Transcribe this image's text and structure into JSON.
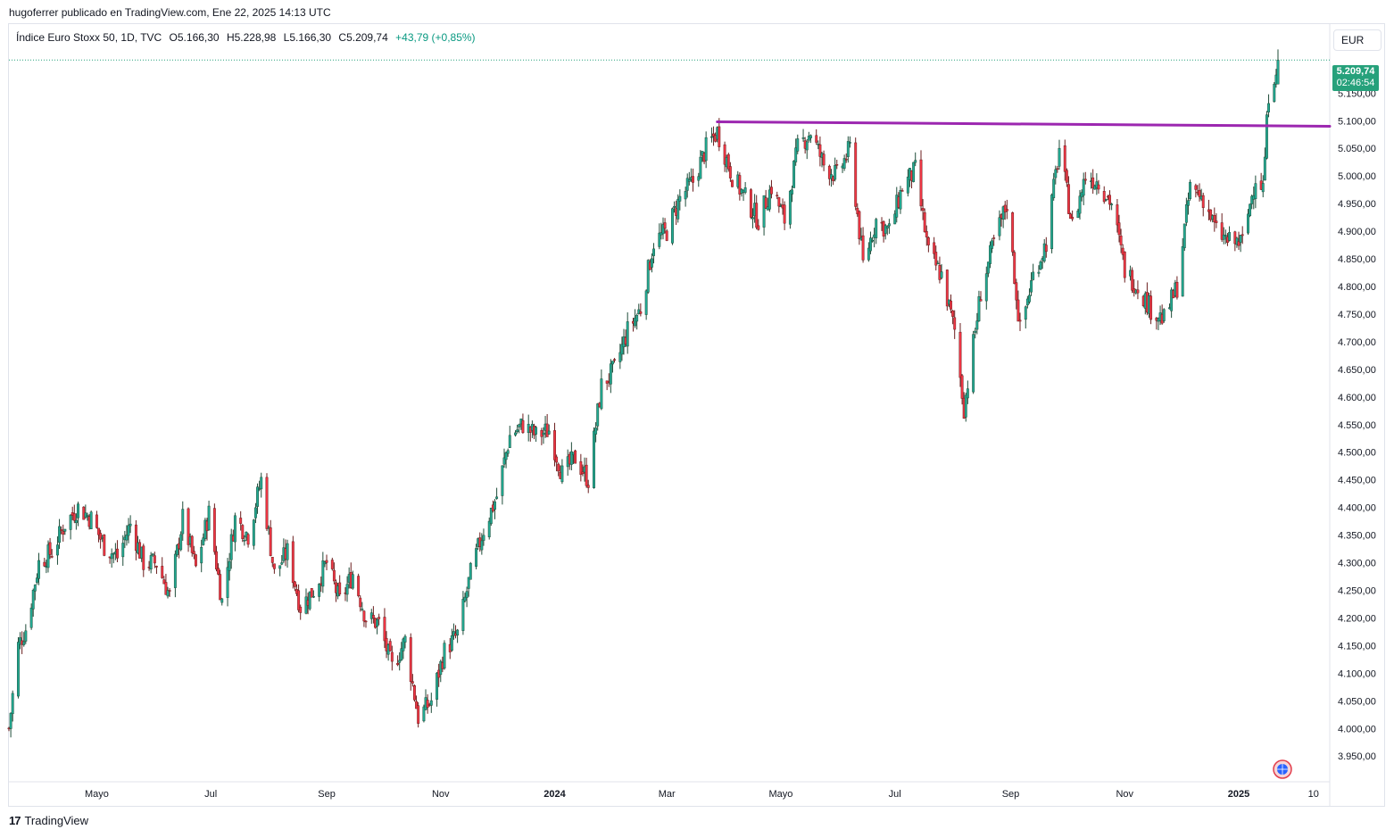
{
  "publication": "hugoferrer publicado en TradingView.com, Ene 22, 2025 14:13 UTC",
  "legend": {
    "symbol": "Índice Euro Stoxx 50, 1D, TVC",
    "open": "O5.166,30",
    "high": "H5.228,98",
    "low": "L5.166,30",
    "close": "C5.209,74",
    "change": "+43,79 (+0,85%)"
  },
  "currency": "EUR",
  "last_price": {
    "value": "5.209,74",
    "countdown": "02:46:54"
  },
  "footer_brand": "TradingView",
  "colors": {
    "up": "#22ab94",
    "up_dark": "#1f4d3a",
    "down": "#f23645",
    "down_dark": "#6b1e1e",
    "trendline": "#9c27b0",
    "last_price": "#26a17b"
  },
  "chart_data": {
    "type": "candlestick",
    "title": "Índice Euro Stoxx 50, 1D, TVC",
    "ylim": [
      3910,
      5270
    ],
    "y_ticks": [
      "5.150,00",
      "5.100,00",
      "5.050,00",
      "5.000,00",
      "4.950,00",
      "4.900,00",
      "4.850,00",
      "4.800,00",
      "4.750,00",
      "4.700,00",
      "4.650,00",
      "4.600,00",
      "4.550,00",
      "4.500,00",
      "4.450,00",
      "4.400,00",
      "4.350,00",
      "4.300,00",
      "4.250,00",
      "4.200,00",
      "4.150,00",
      "4.100,00",
      "4.050,00",
      "4.000,00",
      "3.950,00"
    ],
    "y_tick_values": [
      5150,
      5100,
      5050,
      5000,
      4950,
      4900,
      4850,
      4800,
      4750,
      4700,
      4650,
      4600,
      4550,
      4500,
      4450,
      4400,
      4350,
      4300,
      4250,
      4200,
      4150,
      4100,
      4050,
      4000,
      3950
    ],
    "x_ticks": [
      {
        "label": "Mayo",
        "date": "2023-05-01",
        "bold": false
      },
      {
        "label": "Jul",
        "date": "2023-07-01",
        "bold": false
      },
      {
        "label": "Sep",
        "date": "2023-09-01",
        "bold": false
      },
      {
        "label": "Nov",
        "date": "2023-11-01",
        "bold": false
      },
      {
        "label": "2024",
        "date": "2024-01-01",
        "bold": true
      },
      {
        "label": "Mar",
        "date": "2024-03-01",
        "bold": false
      },
      {
        "label": "Mayo",
        "date": "2024-05-01",
        "bold": false
      },
      {
        "label": "Jul",
        "date": "2024-07-01",
        "bold": false
      },
      {
        "label": "Sep",
        "date": "2024-09-01",
        "bold": false
      },
      {
        "label": "Nov",
        "date": "2024-11-01",
        "bold": false
      },
      {
        "label": "2025",
        "date": "2025-01-01",
        "bold": true
      },
      {
        "label": "10",
        "date": "2025-02-10",
        "bold": false
      }
    ],
    "date_range": [
      "2023-03-15",
      "2025-01-22"
    ],
    "trendline": {
      "from": {
        "date": "2024-03-28",
        "value": 5098
      },
      "to": {
        "date": "2025-02-21",
        "value": 5090
      }
    },
    "last_close": 5209.74,
    "close_path": [
      [
        "2023-03-15",
        4000
      ],
      [
        "2023-03-20",
        4150
      ],
      [
        "2023-03-24",
        4180
      ],
      [
        "2023-03-31",
        4300
      ],
      [
        "2023-04-07",
        4320
      ],
      [
        "2023-04-14",
        4370
      ],
      [
        "2023-04-21",
        4400
      ],
      [
        "2023-04-28",
        4380
      ],
      [
        "2023-05-05",
        4330
      ],
      [
        "2023-05-12",
        4310
      ],
      [
        "2023-05-19",
        4370
      ],
      [
        "2023-05-26",
        4300
      ],
      [
        "2023-06-02",
        4300
      ],
      [
        "2023-06-09",
        4240
      ],
      [
        "2023-06-16",
        4380
      ],
      [
        "2023-06-23",
        4290
      ],
      [
        "2023-06-30",
        4390
      ],
      [
        "2023-07-07",
        4230
      ],
      [
        "2023-07-14",
        4380
      ],
      [
        "2023-07-21",
        4350
      ],
      [
        "2023-07-28",
        4450
      ],
      [
        "2023-08-04",
        4280
      ],
      [
        "2023-08-11",
        4320
      ],
      [
        "2023-08-18",
        4220
      ],
      [
        "2023-08-25",
        4250
      ],
      [
        "2023-09-01",
        4300
      ],
      [
        "2023-09-08",
        4230
      ],
      [
        "2023-09-15",
        4280
      ],
      [
        "2023-09-22",
        4200
      ],
      [
        "2023-09-29",
        4190
      ],
      [
        "2023-10-06",
        4110
      ],
      [
        "2023-10-13",
        4160
      ],
      [
        "2023-10-20",
        4020
      ],
      [
        "2023-10-27",
        4050
      ],
      [
        "2023-11-03",
        4140
      ],
      [
        "2023-11-10",
        4170
      ],
      [
        "2023-11-17",
        4280
      ],
      [
        "2023-11-24",
        4360
      ],
      [
        "2023-12-01",
        4420
      ],
      [
        "2023-12-08",
        4530
      ],
      [
        "2023-12-15",
        4550
      ],
      [
        "2023-12-22",
        4530
      ],
      [
        "2023-12-29",
        4540
      ],
      [
        "2024-01-05",
        4460
      ],
      [
        "2024-01-12",
        4490
      ],
      [
        "2024-01-19",
        4450
      ],
      [
        "2024-01-26",
        4620
      ],
      [
        "2024-02-02",
        4650
      ],
      [
        "2024-02-09",
        4720
      ],
      [
        "2024-02-16",
        4760
      ],
      [
        "2024-02-23",
        4880
      ],
      [
        "2024-03-01",
        4900
      ],
      [
        "2024-03-08",
        4960
      ],
      [
        "2024-03-15",
        4990
      ],
      [
        "2024-03-22",
        5050
      ],
      [
        "2024-03-28",
        5080
      ],
      [
        "2024-04-05",
        5000
      ],
      [
        "2024-04-12",
        4960
      ],
      [
        "2024-04-19",
        4920
      ],
      [
        "2024-04-26",
        4980
      ],
      [
        "2024-05-03",
        4920
      ],
      [
        "2024-05-10",
        5050
      ],
      [
        "2024-05-17",
        5080
      ],
      [
        "2024-05-24",
        5020
      ],
      [
        "2024-05-31",
        5000
      ],
      [
        "2024-06-07",
        5050
      ],
      [
        "2024-06-14",
        4840
      ],
      [
        "2024-06-21",
        4920
      ],
      [
        "2024-06-28",
        4900
      ],
      [
        "2024-07-05",
        4980
      ],
      [
        "2024-07-12",
        5010
      ],
      [
        "2024-07-19",
        4860
      ],
      [
        "2024-07-26",
        4820
      ],
      [
        "2024-08-02",
        4720
      ],
      [
        "2024-08-07",
        4580
      ],
      [
        "2024-08-16",
        4790
      ],
      [
        "2024-08-23",
        4880
      ],
      [
        "2024-08-30",
        4950
      ],
      [
        "2024-09-06",
        4720
      ],
      [
        "2024-09-13",
        4820
      ],
      [
        "2024-09-20",
        4880
      ],
      [
        "2024-09-27",
        5050
      ],
      [
        "2024-10-04",
        4910
      ],
      [
        "2024-10-11",
        5000
      ],
      [
        "2024-10-18",
        4990
      ],
      [
        "2024-10-25",
        4950
      ],
      [
        "2024-11-01",
        4830
      ],
      [
        "2024-11-08",
        4800
      ],
      [
        "2024-11-15",
        4760
      ],
      [
        "2024-11-22",
        4740
      ],
      [
        "2024-11-29",
        4800
      ],
      [
        "2024-12-06",
        4980
      ],
      [
        "2024-12-13",
        4960
      ],
      [
        "2024-12-20",
        4900
      ],
      [
        "2024-12-27",
        4880
      ],
      [
        "2025-01-03",
        4880
      ],
      [
        "2025-01-10",
        5000
      ],
      [
        "2025-01-14",
        4980
      ],
      [
        "2025-01-17",
        5150
      ],
      [
        "2025-01-22",
        5209.74
      ]
    ]
  }
}
